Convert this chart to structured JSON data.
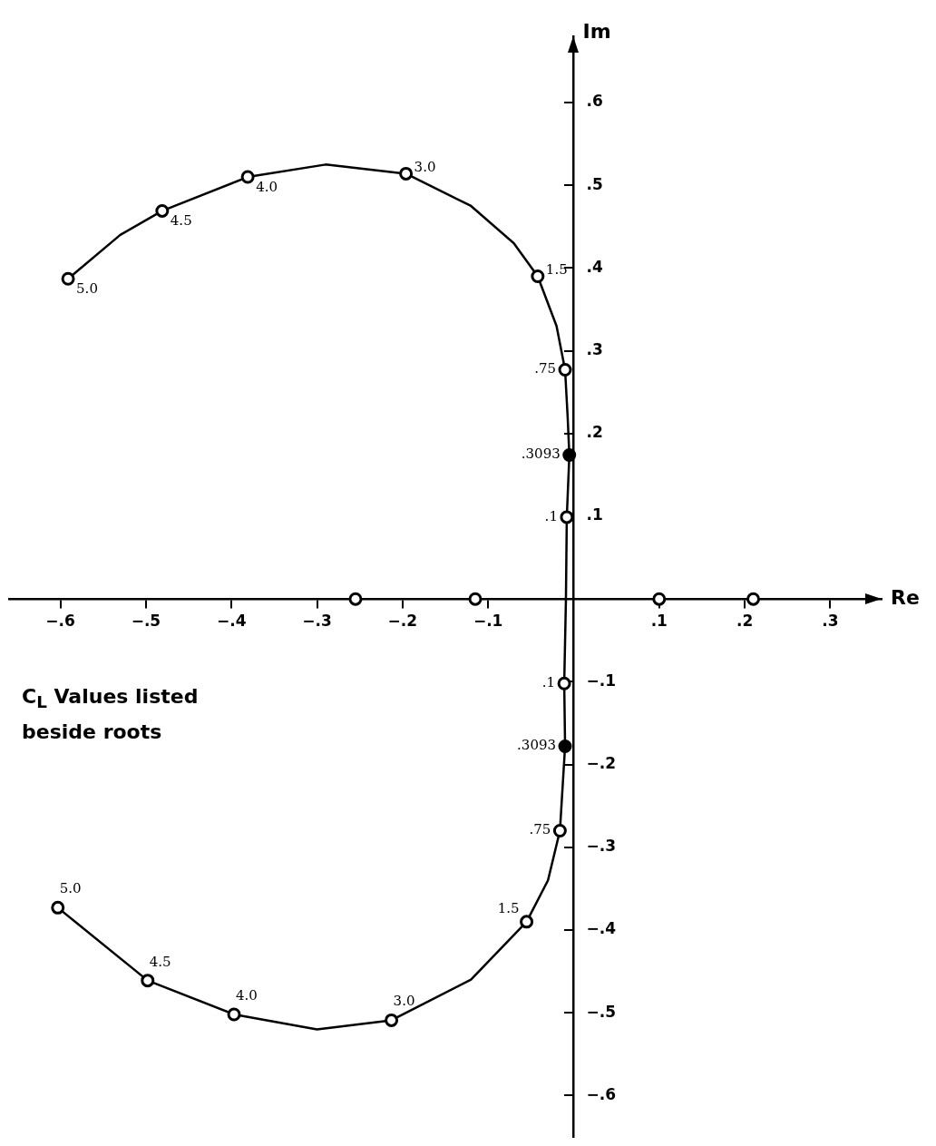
{
  "chart_data": {
    "type": "line",
    "xlabel": "Re",
    "ylabel": "Im",
    "xlim": [
      -0.66,
      0.36
    ],
    "ylim": [
      -0.65,
      0.68
    ],
    "xticks": [
      {
        "value": -0.6,
        "label": "−.6"
      },
      {
        "value": -0.5,
        "label": "−.5"
      },
      {
        "value": -0.4,
        "label": "−.4"
      },
      {
        "value": -0.3,
        "label": "−.3"
      },
      {
        "value": -0.2,
        "label": "−.2"
      },
      {
        "value": -0.1,
        "label": "−.1"
      },
      {
        "value": 0.1,
        "label": ".1"
      },
      {
        "value": 0.2,
        "label": ".2"
      },
      {
        "value": 0.3,
        "label": ".3"
      }
    ],
    "yticks": [
      {
        "value": -0.6,
        "label": "−.6"
      },
      {
        "value": -0.5,
        "label": "−.5"
      },
      {
        "value": -0.4,
        "label": "−.4"
      },
      {
        "value": -0.3,
        "label": "−.3"
      },
      {
        "value": -0.2,
        "label": "−.2"
      },
      {
        "value": -0.1,
        "label": "−.1"
      },
      {
        "value": 0.1,
        "label": ".1"
      },
      {
        "value": 0.2,
        "label": ".2"
      },
      {
        "value": 0.3,
        "label": ".3"
      },
      {
        "value": 0.4,
        "label": ".4"
      },
      {
        "value": 0.5,
        "label": ".5"
      },
      {
        "value": 0.6,
        "label": ".6"
      }
    ],
    "series": [
      {
        "color": "#000000",
        "x": [
          -0.591,
          -0.53,
          -0.481,
          -0.381,
          -0.29,
          -0.196,
          -0.12,
          -0.07,
          -0.042,
          -0.02,
          -0.01,
          -0.007,
          -0.005,
          -0.008,
          -0.009,
          -0.011,
          -0.01,
          -0.016,
          -0.03,
          -0.055,
          -0.12,
          -0.213,
          -0.3,
          -0.397,
          -0.498,
          -0.603
        ],
        "values": [
          0.387,
          0.44,
          0.469,
          0.51,
          0.525,
          0.514,
          0.475,
          0.43,
          0.39,
          0.33,
          0.277,
          0.22,
          0.174,
          0.099,
          0,
          -0.102,
          -0.178,
          -0.28,
          -0.34,
          -0.39,
          -0.46,
          -0.509,
          -0.52,
          -0.502,
          -0.461,
          -0.373
        ]
      },
      {
        "type": "scatter",
        "marker": "circle",
        "color": "#ffffff",
        "x": [
          -0.591,
          -0.481,
          -0.381,
          -0.196,
          -0.042,
          -0.01,
          -0.008,
          -0.011,
          -0.016,
          -0.055,
          -0.213,
          -0.397,
          -0.498,
          -0.603,
          -0.255,
          -0.115,
          0.1,
          0.21
        ],
        "values": [
          0.387,
          0.469,
          0.51,
          0.514,
          0.39,
          0.277,
          0.099,
          -0.102,
          -0.28,
          -0.39,
          -0.509,
          -0.502,
          -0.461,
          -0.373,
          0,
          0,
          0,
          0
        ]
      },
      {
        "type": "scatter",
        "marker": "circle",
        "color": "#000000",
        "x": [
          -0.005,
          -0.01
        ],
        "values": [
          0.174,
          -0.178
        ]
      }
    ],
    "annotations": [
      {
        "text": "5.0",
        "x": -0.591,
        "y": 0.387
      },
      {
        "text": "4.5",
        "x": -0.481,
        "y": 0.469
      },
      {
        "text": "4.0",
        "x": -0.381,
        "y": 0.51
      },
      {
        "text": "3.0",
        "x": -0.196,
        "y": 0.514
      },
      {
        "text": "1.5",
        "x": -0.042,
        "y": 0.39
      },
      {
        "text": ".75",
        "x": -0.01,
        "y": 0.277
      },
      {
        "text": ".3093",
        "x": -0.005,
        "y": 0.174
      },
      {
        "text": ".1",
        "x": -0.008,
        "y": 0.099
      },
      {
        "text": ".1",
        "x": -0.011,
        "y": -0.102
      },
      {
        "text": ".3093",
        "x": -0.01,
        "y": -0.178
      },
      {
        "text": ".75",
        "x": -0.016,
        "y": -0.28
      },
      {
        "text": "1.5",
        "x": -0.055,
        "y": -0.39
      },
      {
        "text": "3.0",
        "x": -0.213,
        "y": -0.509
      },
      {
        "text": "4.0",
        "x": -0.397,
        "y": -0.502
      },
      {
        "text": "4.5",
        "x": -0.498,
        "y": -0.461
      },
      {
        "text": "5.0",
        "x": -0.603,
        "y": -0.373
      },
      "C$_{L}$ Values listed beside roots"
    ]
  }
}
